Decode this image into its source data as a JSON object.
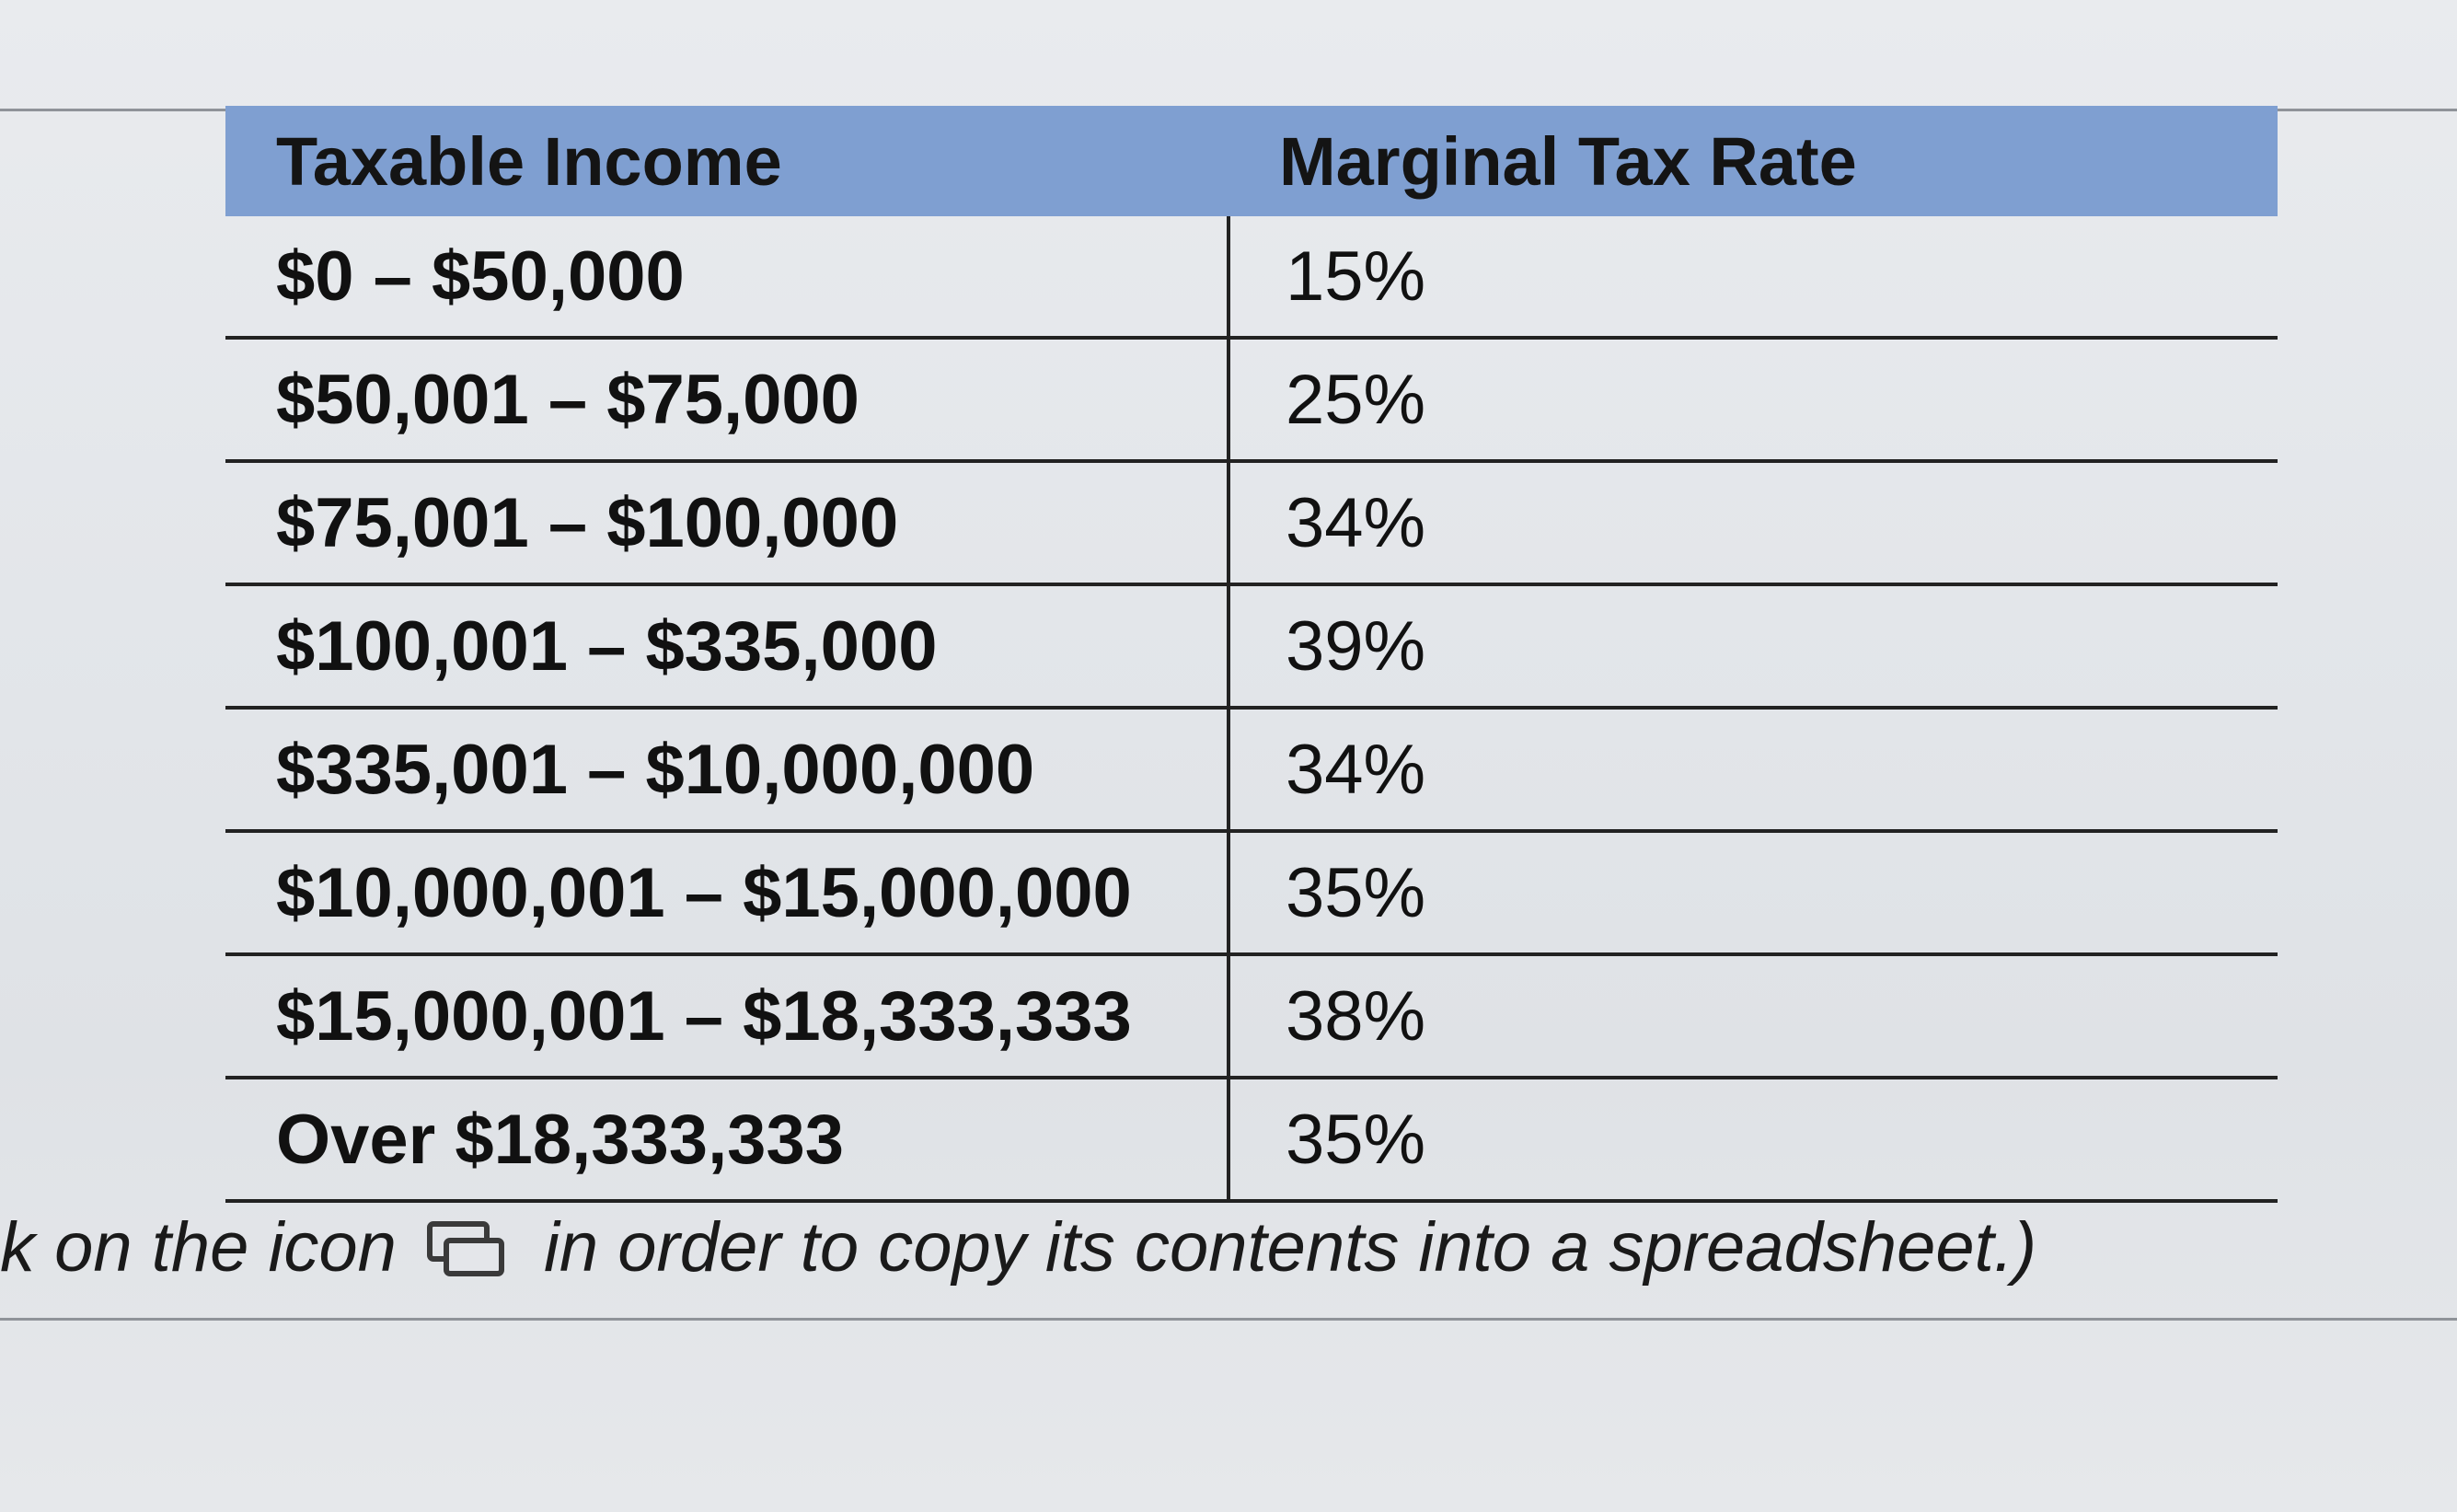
{
  "table": {
    "headers": [
      "Taxable Income",
      "Marginal Tax Rate"
    ],
    "rows": [
      {
        "income": "$0 – $50,000",
        "rate": "15%"
      },
      {
        "income": "$50,001 – $75,000",
        "rate": "25%"
      },
      {
        "income": "$75,001 – $100,000",
        "rate": "34%"
      },
      {
        "income": "$100,001 – $335,000",
        "rate": "39%"
      },
      {
        "income": "$335,001 – $10,000,000",
        "rate": "34%"
      },
      {
        "income": "$10,000,001 – $15,000,000",
        "rate": "35%"
      },
      {
        "income": "$15,000,001 – $18,333,333",
        "rate": "38%"
      },
      {
        "income": "Over $18,333,333",
        "rate": "35%"
      }
    ],
    "header_color": "#7f9fd1"
  },
  "caption": {
    "before_icon": "k on the icon",
    "icon": "copy-to-spreadsheet-icon",
    "after_icon": "in order to copy its contents into a spreadsheet.)"
  }
}
